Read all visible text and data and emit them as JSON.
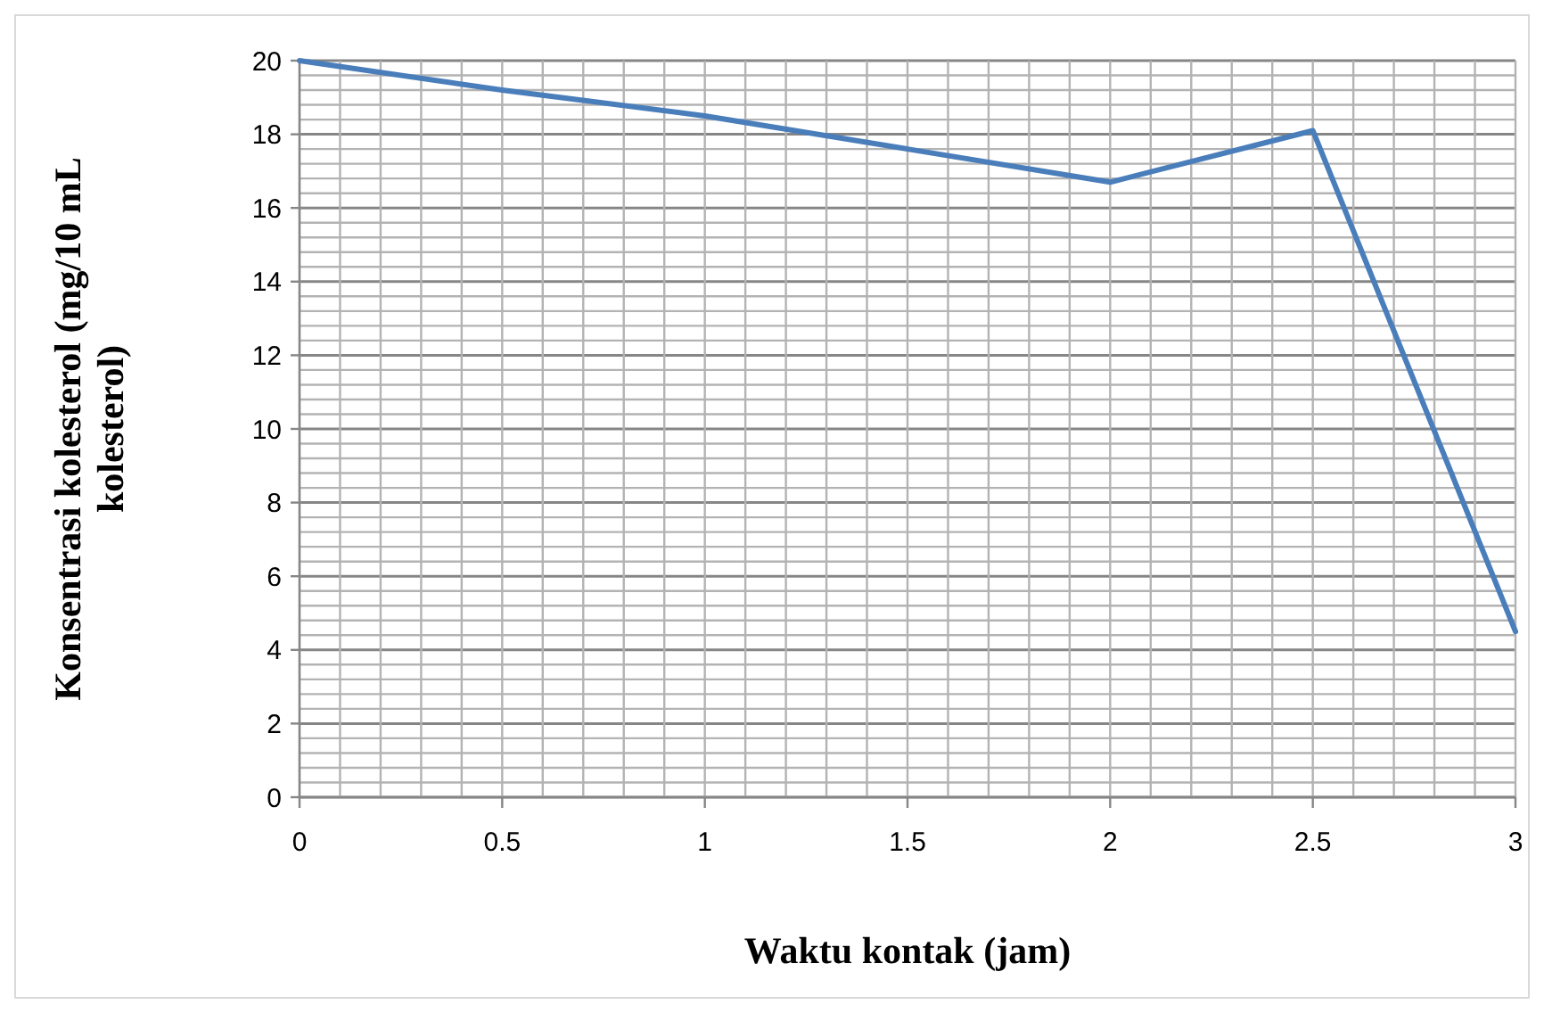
{
  "chart_data": {
    "type": "line",
    "xlabel": "Waktu kontak (jam)",
    "ylabel": "Konsentrasi kolesterol (mg/10 mL kolesterol)",
    "x": [
      0,
      0.5,
      1,
      1.5,
      2,
      2.5,
      3
    ],
    "series": [
      {
        "color": "#4a7ebb",
        "values": [
          20,
          19.2,
          18.5,
          17.6,
          16.7,
          18.1,
          4.5
        ]
      }
    ],
    "xlim": [
      0,
      3
    ],
    "ylim": [
      0,
      20
    ],
    "xticks": [
      0,
      {
        "value": 0.1,
        "label": null
      },
      {
        "value": 0.2,
        "label": null
      },
      {
        "value": 0.3,
        "label": null
      },
      {
        "value": 0.4,
        "label": null
      },
      0.5,
      {
        "value": 0.6,
        "label": null
      },
      {
        "value": 0.7,
        "label": null
      },
      {
        "value": 0.8,
        "label": null
      },
      {
        "value": 0.9,
        "label": null
      },
      1,
      {
        "value": 1.1,
        "label": null
      },
      {
        "value": 1.2,
        "label": null
      },
      {
        "value": 1.3,
        "label": null
      },
      {
        "value": 1.4,
        "label": null
      },
      1.5,
      {
        "value": 1.6,
        "label": null
      },
      {
        "value": 1.7,
        "label": null
      },
      {
        "value": 1.8,
        "label": null
      },
      {
        "value": 1.9,
        "label": null
      },
      2,
      {
        "value": 2.1,
        "label": null
      },
      {
        "value": 2.2,
        "label": null
      },
      {
        "value": 2.3,
        "label": null
      },
      {
        "value": 2.4,
        "label": null
      },
      2.5,
      {
        "value": 2.6,
        "label": null
      },
      {
        "value": 2.7,
        "label": null
      },
      {
        "value": 2.8,
        "label": null
      },
      {
        "value": 2.9,
        "label": null
      },
      3
    ],
    "yticks": [
      0,
      {
        "value": 0.4,
        "label": null
      },
      {
        "value": 0.8,
        "label": null
      },
      {
        "value": 1.2,
        "label": null
      },
      {
        "value": 1.6,
        "label": null
      },
      2,
      {
        "value": 2.4,
        "label": null
      },
      {
        "value": 2.8,
        "label": null
      },
      {
        "value": 3.2,
        "label": null
      },
      {
        "value": 3.6,
        "label": null
      },
      4,
      {
        "value": 4.4,
        "label": null
      },
      {
        "value": 4.8,
        "label": null
      },
      {
        "value": 5.2,
        "label": null
      },
      {
        "value": 5.6,
        "label": null
      },
      6,
      {
        "value": 6.4,
        "label": null
      },
      {
        "value": 6.8,
        "label": null
      },
      {
        "value": 7.2,
        "label": null
      },
      {
        "value": 7.6,
        "label": null
      },
      8,
      {
        "value": 8.4,
        "label": null
      },
      {
        "value": 8.8,
        "label": null
      },
      {
        "value": 9.2,
        "label": null
      },
      {
        "value": 9.6,
        "label": null
      },
      10,
      {
        "value": 10.4,
        "label": null
      },
      {
        "value": 10.8,
        "label": null
      },
      {
        "value": 11.2,
        "label": null
      },
      {
        "value": 11.6,
        "label": null
      },
      12,
      {
        "value": 12.4,
        "label": null
      },
      {
        "value": 12.8,
        "label": null
      },
      {
        "value": 13.2,
        "label": null
      },
      {
        "value": 13.6,
        "label": null
      },
      14,
      {
        "value": 14.4,
        "label": null
      },
      {
        "value": 14.8,
        "label": null
      },
      {
        "value": 15.2,
        "label": null
      },
      {
        "value": 15.6,
        "label": null
      },
      16,
      {
        "value": 16.4,
        "label": null
      },
      {
        "value": 16.8,
        "label": null
      },
      {
        "value": 17.2,
        "label": null
      },
      {
        "value": 17.6,
        "label": null
      },
      18,
      {
        "value": 18.4,
        "label": null
      },
      {
        "value": 18.8,
        "label": null
      },
      {
        "value": 19.2,
        "label": null
      },
      {
        "value": 19.6,
        "label": null
      },
      20
    ],
    "grid": true,
    "marker": "none",
    "line_style": "solid"
  }
}
